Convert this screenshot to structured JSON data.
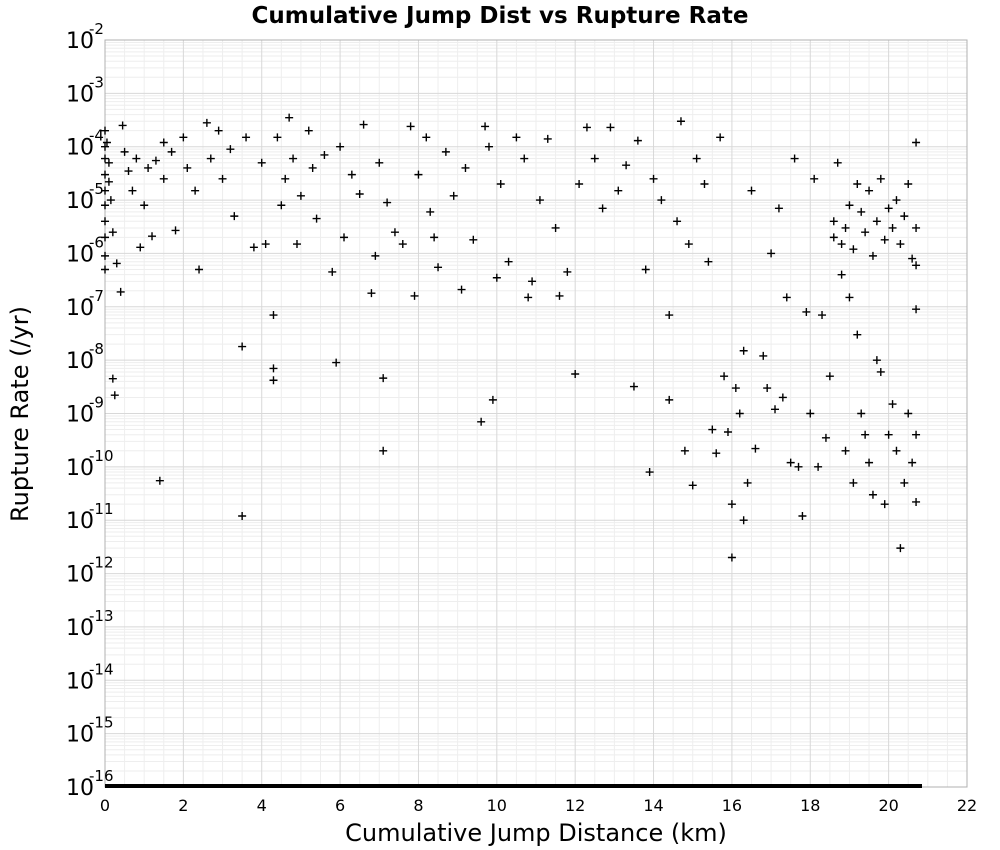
{
  "chart_data": {
    "type": "scatter",
    "title": "Cumulative Jump Dist vs Rupture Rate",
    "xlabel": "Cumulative Jump Distance (km)",
    "ylabel": "Rupture Rate (/yr)",
    "xlim": [
      0,
      22
    ],
    "ylim": [
      1e-16,
      0.01
    ],
    "yscale": "log",
    "grid": true,
    "marker": "+",
    "marker_color": "#000000",
    "x_ticks": [
      "0",
      "2",
      "4",
      "6",
      "8",
      "10",
      "12",
      "14",
      "16",
      "18",
      "20",
      "22"
    ],
    "y_ticks": [
      {
        "base": "10",
        "exp": "-16",
        "value": -16
      },
      {
        "base": "10",
        "exp": "-15",
        "value": -15
      },
      {
        "base": "10",
        "exp": "-14",
        "value": -14
      },
      {
        "base": "10",
        "exp": "-13",
        "value": -13
      },
      {
        "base": "10",
        "exp": "-12",
        "value": -12
      },
      {
        "base": "10",
        "exp": "-11",
        "value": -11
      },
      {
        "base": "10",
        "exp": "-10",
        "value": -10
      },
      {
        "base": "10",
        "exp": "-9",
        "value": -9
      },
      {
        "base": "10",
        "exp": "-8",
        "value": -8
      },
      {
        "base": "10",
        "exp": "-7",
        "value": -7
      },
      {
        "base": "10",
        "exp": "-6",
        "value": -6
      },
      {
        "base": "10",
        "exp": "-5",
        "value": -5
      },
      {
        "base": "10",
        "exp": "-4",
        "value": -4
      },
      {
        "base": "10",
        "exp": "-3",
        "value": -3
      },
      {
        "base": "10",
        "exp": "-2",
        "value": -2
      }
    ],
    "points": [
      [
        0.0,
        0.0002
      ],
      [
        0.0,
        0.0001
      ],
      [
        0.0,
        6e-05
      ],
      [
        0.0,
        3e-05
      ],
      [
        0.0,
        1.5e-05
      ],
      [
        0.0,
        8e-06
      ],
      [
        0.0,
        4e-06
      ],
      [
        0.0,
        2e-06
      ],
      [
        0.0,
        9e-07
      ],
      [
        0.0,
        5e-07
      ],
      [
        0.05,
        0.00012
      ],
      [
        0.1,
        5e-05
      ],
      [
        0.1,
        2.2e-05
      ],
      [
        0.15,
        1e-05
      ],
      [
        0.2,
        2.5e-06
      ],
      [
        0.2,
        4.5e-09
      ],
      [
        0.25,
        2.2e-09
      ],
      [
        0.3,
        6.5e-07
      ],
      [
        0.4,
        1.9e-07
      ],
      [
        0.45,
        0.00025
      ],
      [
        0.5,
        8e-05
      ],
      [
        0.6,
        3.5e-05
      ],
      [
        0.7,
        1.5e-05
      ],
      [
        0.8,
        6e-05
      ],
      [
        0.9,
        1.3e-06
      ],
      [
        1.0,
        8e-06
      ],
      [
        1.1,
        4e-05
      ],
      [
        1.2,
        2.1e-06
      ],
      [
        1.3,
        5.5e-05
      ],
      [
        1.4,
        5.5e-11
      ],
      [
        1.5,
        0.00012
      ],
      [
        1.5,
        2.5e-05
      ],
      [
        1.7,
        8e-05
      ],
      [
        1.8,
        2.7e-06
      ],
      [
        2.0,
        0.00015
      ],
      [
        2.1,
        4e-05
      ],
      [
        2.3,
        1.5e-05
      ],
      [
        2.4,
        5e-07
      ],
      [
        2.6,
        0.00028
      ],
      [
        2.7,
        6e-05
      ],
      [
        2.9,
        0.0002
      ],
      [
        3.0,
        2.5e-05
      ],
      [
        3.2,
        9e-05
      ],
      [
        3.3,
        5e-06
      ],
      [
        3.5,
        1.8e-08
      ],
      [
        3.5,
        1.2e-11
      ],
      [
        3.6,
        0.00015
      ],
      [
        3.8,
        1.3e-06
      ],
      [
        4.0,
        5e-05
      ],
      [
        4.1,
        1.5e-06
      ],
      [
        4.3,
        7e-08
      ],
      [
        4.3,
        7e-09
      ],
      [
        4.3,
        4.2e-09
      ],
      [
        4.4,
        0.00015
      ],
      [
        4.5,
        8e-06
      ],
      [
        4.6,
        2.5e-05
      ],
      [
        4.7,
        0.00035
      ],
      [
        4.8,
        6e-05
      ],
      [
        4.9,
        1.5e-06
      ],
      [
        5.0,
        1.2e-05
      ],
      [
        5.2,
        0.0002
      ],
      [
        5.3,
        4e-05
      ],
      [
        5.4,
        4.5e-06
      ],
      [
        5.6,
        7e-05
      ],
      [
        5.8,
        4.5e-07
      ],
      [
        5.9,
        9e-09
      ],
      [
        6.0,
        0.0001
      ],
      [
        6.1,
        2e-06
      ],
      [
        6.3,
        3e-05
      ],
      [
        6.5,
        1.3e-05
      ],
      [
        6.6,
        0.00026
      ],
      [
        6.8,
        1.8e-07
      ],
      [
        6.9,
        9e-07
      ],
      [
        7.0,
        5e-05
      ],
      [
        7.1,
        2e-10
      ],
      [
        7.1,
        4.6e-09
      ],
      [
        7.2,
        9e-06
      ],
      [
        7.4,
        2.5e-06
      ],
      [
        7.6,
        1.5e-06
      ],
      [
        7.8,
        0.00024
      ],
      [
        7.9,
        1.6e-07
      ],
      [
        8.0,
        3e-05
      ],
      [
        8.2,
        0.00015
      ],
      [
        8.3,
        6e-06
      ],
      [
        8.4,
        2e-06
      ],
      [
        8.5,
        5.5e-07
      ],
      [
        8.7,
        8e-05
      ],
      [
        8.9,
        1.2e-05
      ],
      [
        9.1,
        2.1e-07
      ],
      [
        9.2,
        4e-05
      ],
      [
        9.4,
        1.8e-06
      ],
      [
        9.6,
        7e-10
      ],
      [
        9.7,
        0.00024
      ],
      [
        9.8,
        0.0001
      ],
      [
        9.9,
        1.8e-09
      ],
      [
        10.0,
        3.5e-07
      ],
      [
        10.1,
        2e-05
      ],
      [
        10.3,
        7e-07
      ],
      [
        10.5,
        0.00015
      ],
      [
        10.7,
        6e-05
      ],
      [
        10.8,
        1.5e-07
      ],
      [
        10.9,
        3e-07
      ],
      [
        11.1,
        1e-05
      ],
      [
        11.3,
        0.00014
      ],
      [
        11.5,
        3e-06
      ],
      [
        11.6,
        1.6e-07
      ],
      [
        11.8,
        4.5e-07
      ],
      [
        12.0,
        5.5e-09
      ],
      [
        12.1,
        2e-05
      ],
      [
        12.3,
        0.00023
      ],
      [
        12.5,
        6e-05
      ],
      [
        12.7,
        7e-06
      ],
      [
        12.9,
        0.00023
      ],
      [
        13.1,
        1.5e-05
      ],
      [
        13.3,
        4.5e-05
      ],
      [
        13.5,
        3.2e-09
      ],
      [
        13.6,
        0.00013
      ],
      [
        13.8,
        5e-07
      ],
      [
        13.9,
        8e-11
      ],
      [
        14.0,
        2.5e-05
      ],
      [
        14.2,
        1e-05
      ],
      [
        14.4,
        7e-08
      ],
      [
        14.4,
        1.8e-09
      ],
      [
        14.6,
        4e-06
      ],
      [
        14.7,
        0.0003
      ],
      [
        14.8,
        2e-10
      ],
      [
        14.9,
        1.5e-06
      ],
      [
        15.0,
        4.5e-11
      ],
      [
        15.1,
        6e-05
      ],
      [
        15.3,
        2e-05
      ],
      [
        15.4,
        7e-07
      ],
      [
        15.5,
        5e-10
      ],
      [
        15.6,
        1.8e-10
      ],
      [
        15.7,
        0.00015
      ],
      [
        15.8,
        5e-09
      ],
      [
        15.9,
        4.5e-10
      ],
      [
        16.0,
        2e-11
      ],
      [
        16.0,
        2e-12
      ],
      [
        16.1,
        3e-09
      ],
      [
        16.2,
        1e-09
      ],
      [
        16.3,
        1.5e-08
      ],
      [
        16.3,
        1e-11
      ],
      [
        16.4,
        5e-11
      ],
      [
        16.5,
        1.5e-05
      ],
      [
        16.6,
        2.2e-10
      ],
      [
        16.8,
        1.2e-08
      ],
      [
        16.9,
        3e-09
      ],
      [
        17.0,
        1e-06
      ],
      [
        17.1,
        1.2e-09
      ],
      [
        17.2,
        7e-06
      ],
      [
        17.3,
        2e-09
      ],
      [
        17.4,
        1.5e-07
      ],
      [
        17.5,
        1.2e-10
      ],
      [
        17.6,
        6e-05
      ],
      [
        17.7,
        1e-10
      ],
      [
        17.8,
        1.2e-11
      ],
      [
        17.9,
        8e-08
      ],
      [
        18.0,
        1e-09
      ],
      [
        18.1,
        2.5e-05
      ],
      [
        18.2,
        1e-10
      ],
      [
        18.3,
        7e-08
      ],
      [
        18.4,
        3.5e-10
      ],
      [
        18.5,
        5e-09
      ],
      [
        18.6,
        2e-06
      ],
      [
        18.6,
        4e-06
      ],
      [
        18.7,
        5e-05
      ],
      [
        18.8,
        4e-07
      ],
      [
        18.8,
        1.5e-06
      ],
      [
        18.9,
        2e-10
      ],
      [
        18.9,
        3e-06
      ],
      [
        19.0,
        1.5e-07
      ],
      [
        19.0,
        8e-06
      ],
      [
        19.1,
        5e-11
      ],
      [
        19.1,
        1.2e-06
      ],
      [
        19.2,
        3e-08
      ],
      [
        19.2,
        2e-05
      ],
      [
        19.3,
        1e-09
      ],
      [
        19.3,
        6e-06
      ],
      [
        19.4,
        4e-10
      ],
      [
        19.4,
        2.5e-06
      ],
      [
        19.5,
        1.2e-10
      ],
      [
        19.5,
        1.5e-05
      ],
      [
        19.6,
        3e-11
      ],
      [
        19.6,
        9e-07
      ],
      [
        19.7,
        1e-08
      ],
      [
        19.7,
        4e-06
      ],
      [
        19.8,
        6e-09
      ],
      [
        19.8,
        2.5e-05
      ],
      [
        19.9,
        2e-11
      ],
      [
        19.9,
        1.8e-06
      ],
      [
        20.0,
        4e-10
      ],
      [
        20.0,
        7e-06
      ],
      [
        20.1,
        1.5e-09
      ],
      [
        20.1,
        3e-06
      ],
      [
        20.2,
        2e-10
      ],
      [
        20.2,
        1e-05
      ],
      [
        20.3,
        3e-12
      ],
      [
        20.3,
        1.5e-06
      ],
      [
        20.4,
        5e-11
      ],
      [
        20.4,
        5e-06
      ],
      [
        20.5,
        1e-09
      ],
      [
        20.5,
        2e-05
      ],
      [
        20.6,
        1.2e-10
      ],
      [
        20.6,
        8e-07
      ],
      [
        20.7,
        4e-10
      ],
      [
        20.7,
        0.00012
      ],
      [
        20.7,
        3e-06
      ],
      [
        20.7,
        6e-07
      ],
      [
        20.7,
        2.2e-11
      ],
      [
        20.7,
        9e-08
      ]
    ]
  }
}
